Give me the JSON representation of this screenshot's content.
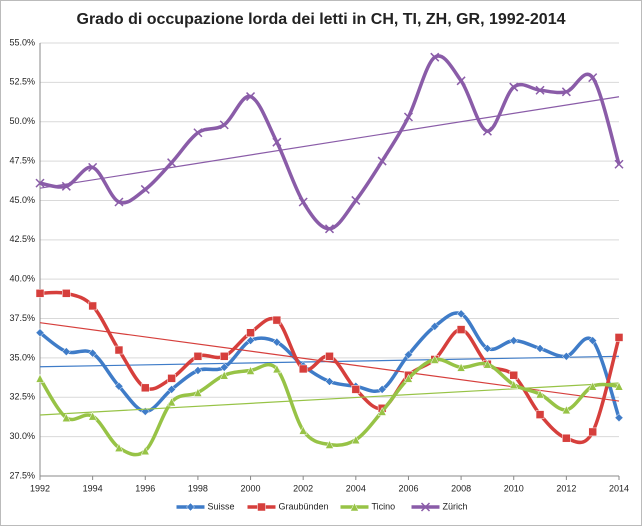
{
  "chart_data": {
    "type": "line",
    "title": "Grado di occupazione lorda dei letti in CH, TI, ZH, GR, 1992-2014",
    "x": [
      1992,
      1993,
      1994,
      1995,
      1996,
      1997,
      1998,
      1999,
      2000,
      2001,
      2002,
      2003,
      2004,
      2005,
      2006,
      2007,
      2008,
      2009,
      2010,
      2011,
      2012,
      2013,
      2014
    ],
    "series": [
      {
        "name": "Suisse",
        "color": "#3f7cc8",
        "marker": "diamond",
        "values": [
          36.6,
          35.4,
          35.3,
          33.2,
          31.6,
          33.0,
          34.2,
          34.4,
          36.1,
          36.0,
          34.5,
          33.5,
          33.2,
          33.0,
          35.2,
          37.0,
          37.8,
          35.6,
          36.1,
          35.6,
          35.1,
          36.1,
          31.2
        ]
      },
      {
        "name": "Graubünden",
        "color": "#d63f3c",
        "marker": "square",
        "values": [
          39.1,
          39.1,
          38.3,
          35.5,
          33.1,
          33.7,
          35.1,
          35.1,
          36.6,
          37.4,
          34.3,
          35.1,
          33.0,
          31.8,
          33.9,
          34.9,
          36.8,
          34.6,
          33.9,
          31.4,
          29.9,
          30.3,
          36.3
        ]
      },
      {
        "name": "Ticino",
        "color": "#97c346",
        "marker": "triangle",
        "values": [
          33.7,
          31.2,
          31.3,
          29.3,
          29.1,
          32.2,
          32.8,
          33.9,
          34.2,
          34.3,
          30.4,
          29.5,
          29.8,
          31.6,
          33.7,
          34.9,
          34.4,
          34.6,
          33.3,
          32.7,
          31.7,
          33.2,
          33.2
        ]
      },
      {
        "name": "Zürich",
        "color": "#8a5ca8",
        "marker": "x",
        "values": [
          46.1,
          45.9,
          47.1,
          44.9,
          45.7,
          47.4,
          49.3,
          49.8,
          51.6,
          48.7,
          44.9,
          43.2,
          45.0,
          47.5,
          50.3,
          54.1,
          52.6,
          49.4,
          52.2,
          52.0,
          51.9,
          52.8,
          47.3
        ]
      }
    ],
    "xlim": [
      1992,
      2014
    ],
    "xticks": [
      1992,
      1994,
      1996,
      1998,
      2000,
      2002,
      2004,
      2006,
      2008,
      2010,
      2012,
      2014
    ],
    "ylim": [
      27.5,
      55
    ],
    "yticks": [
      {
        "value": 27.5,
        "label": "27.5%"
      },
      {
        "value": 30,
        "label": "30.0%"
      },
      {
        "value": 32.5,
        "label": "32.5%"
      },
      {
        "value": 35,
        "label": "35.0%"
      },
      {
        "value": 37.5,
        "label": "37.5%"
      },
      {
        "value": 40,
        "label": "40.0%"
      },
      {
        "value": 42.5,
        "label": "42.5%"
      },
      {
        "value": 45,
        "label": "45.0%"
      },
      {
        "value": 47.5,
        "label": "47.5%"
      },
      {
        "value": 50,
        "label": "50.0%"
      },
      {
        "value": 52.5,
        "label": "52.5%"
      },
      {
        "value": 55,
        "label": "55.0%"
      }
    ],
    "grid": true,
    "smooth": true,
    "trendline": true,
    "legend": "bottom"
  }
}
